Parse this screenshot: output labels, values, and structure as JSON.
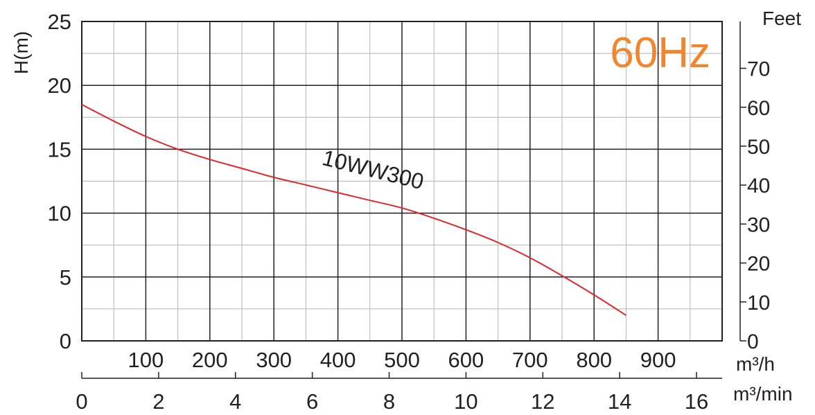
{
  "chart_data": {
    "type": "line",
    "badge": "60Hz",
    "badge_color": "#f0862e",
    "curve_color": "#e0262b",
    "y_left": {
      "label": "H(m)",
      "range": [
        0,
        25
      ],
      "ticks": [
        {
          "value": 0,
          "label": "0"
        },
        {
          "value": 5,
          "label": "5"
        },
        {
          "value": 10,
          "label": "10"
        },
        {
          "value": 15,
          "label": "15"
        },
        {
          "value": 20,
          "label": "20"
        },
        {
          "value": 25,
          "label": "25"
        }
      ]
    },
    "y_right": {
      "label": "Feet",
      "range": [
        0,
        82.02
      ],
      "ticks": [
        {
          "value": 0,
          "label": "0"
        },
        {
          "value": 10,
          "label": "10"
        },
        {
          "value": 20,
          "label": "20"
        },
        {
          "value": 30,
          "label": "30"
        },
        {
          "value": 40,
          "label": "40"
        },
        {
          "value": 50,
          "label": "50"
        },
        {
          "value": 60,
          "label": "60"
        },
        {
          "value": 70,
          "label": "70"
        }
      ]
    },
    "x_top": {
      "unit": "m³/h",
      "range": [
        0,
        1000
      ],
      "ticks": [
        {
          "value": 100,
          "label": "100"
        },
        {
          "value": 200,
          "label": "200"
        },
        {
          "value": 300,
          "label": "300"
        },
        {
          "value": 400,
          "label": "400"
        },
        {
          "value": 500,
          "label": "500"
        },
        {
          "value": 600,
          "label": "600"
        },
        {
          "value": 700,
          "label": "700"
        },
        {
          "value": 800,
          "label": "800"
        },
        {
          "value": 900,
          "label": "900"
        }
      ]
    },
    "x_bottom": {
      "unit": "m³/min",
      "range": [
        0,
        16.667
      ],
      "ticks": [
        {
          "value": 0,
          "label": "0"
        },
        {
          "value": 2,
          "label": "2"
        },
        {
          "value": 4,
          "label": "4"
        },
        {
          "value": 6,
          "label": "6"
        },
        {
          "value": 8,
          "label": "8"
        },
        {
          "value": 10,
          "label": "10"
        },
        {
          "value": 12,
          "label": "12"
        },
        {
          "value": 14,
          "label": "14"
        },
        {
          "value": 16,
          "label": "16"
        }
      ]
    },
    "grid": true,
    "series": [
      {
        "name": "10WW300",
        "x": [
          0,
          50,
          100,
          150,
          200,
          250,
          300,
          350,
          400,
          450,
          500,
          550,
          600,
          650,
          700,
          750,
          800,
          850
        ],
        "y": [
          18.5,
          17.2,
          16.0,
          15.0,
          14.2,
          13.5,
          12.8,
          12.2,
          11.6,
          11.0,
          10.4,
          9.6,
          8.7,
          7.7,
          6.5,
          5.1,
          3.6,
          2.0
        ]
      }
    ]
  }
}
